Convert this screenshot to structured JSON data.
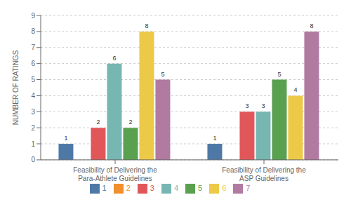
{
  "chart_data": {
    "type": "bar",
    "categories": [
      "Feasibility of Delivering the Para-Athlete Guidelines",
      "Feasibility of Delivering the ASP Guidelines"
    ],
    "series": [
      {
        "name": "1",
        "color": "#4e79a7",
        "values": [
          1,
          1
        ]
      },
      {
        "name": "2",
        "color": "#f28e2b",
        "values": [
          0,
          0
        ]
      },
      {
        "name": "3",
        "color": "#e15759",
        "values": [
          2,
          3
        ]
      },
      {
        "name": "4",
        "color": "#76b7b2",
        "values": [
          6,
          3
        ]
      },
      {
        "name": "5",
        "color": "#59a14f",
        "values": [
          2,
          5
        ]
      },
      {
        "name": "6",
        "color": "#edc948",
        "values": [
          8,
          4
        ]
      },
      {
        "name": "7",
        "color": "#b07aa1",
        "values": [
          5,
          8
        ]
      }
    ],
    "ylabel": "NUMBER OF RATINGS",
    "ylim": [
      0,
      9
    ],
    "yticks": [
      0,
      1,
      2,
      3,
      4,
      5,
      6,
      7,
      8,
      9
    ],
    "grid": true,
    "legend": "bottom",
    "data_labels": true
  }
}
